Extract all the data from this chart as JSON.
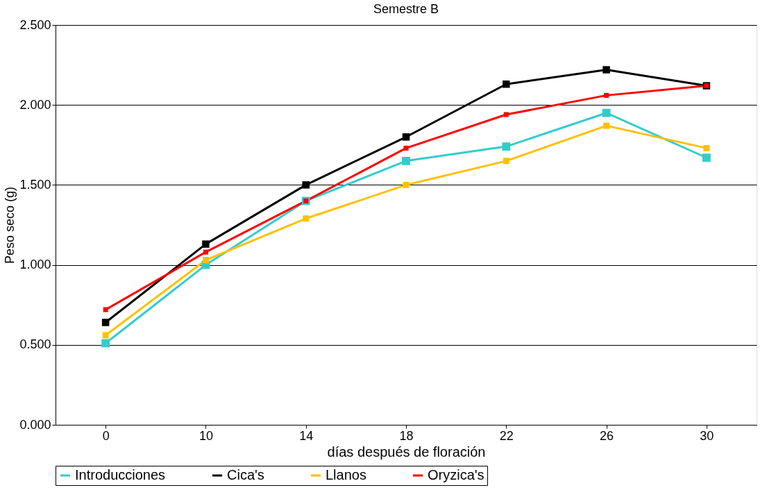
{
  "chart_data": {
    "type": "line",
    "title": "Semestre B",
    "xlabel": "días después de floración",
    "ylabel": "Peso seco (g)",
    "categories": [
      "0",
      "10",
      "14",
      "18",
      "22",
      "26",
      "30"
    ],
    "series": [
      {
        "name": "Introducciones",
        "color": "#33cccc",
        "values": [
          0.51,
          1.0,
          1.4,
          1.65,
          1.74,
          1.95,
          1.67
        ]
      },
      {
        "name": "Cica's",
        "color": "#000000",
        "values": [
          0.64,
          1.13,
          1.5,
          1.8,
          2.13,
          2.22,
          2.12
        ]
      },
      {
        "name": "Llanos",
        "color": "#ffc000",
        "values": [
          0.56,
          1.03,
          1.29,
          1.5,
          1.65,
          1.87,
          1.73
        ]
      },
      {
        "name": "Oryzica's",
        "color": "#ff0000",
        "values": [
          0.72,
          1.08,
          1.4,
          1.73,
          1.94,
          2.06,
          2.12
        ]
      }
    ],
    "ylim": [
      0,
      2.5
    ],
    "yticks": [
      {
        "value": 0,
        "label": "0.000"
      },
      {
        "value": 0.5,
        "label": "0.500"
      },
      {
        "value": 1,
        "label": "1.000"
      },
      {
        "value": 1.5,
        "label": "1.500"
      },
      {
        "value": 2,
        "label": "2.000"
      },
      {
        "value": 2.5,
        "label": "2.500"
      }
    ],
    "grid": "y",
    "legend": "bottom",
    "marker": "square",
    "line_style": "solid"
  }
}
